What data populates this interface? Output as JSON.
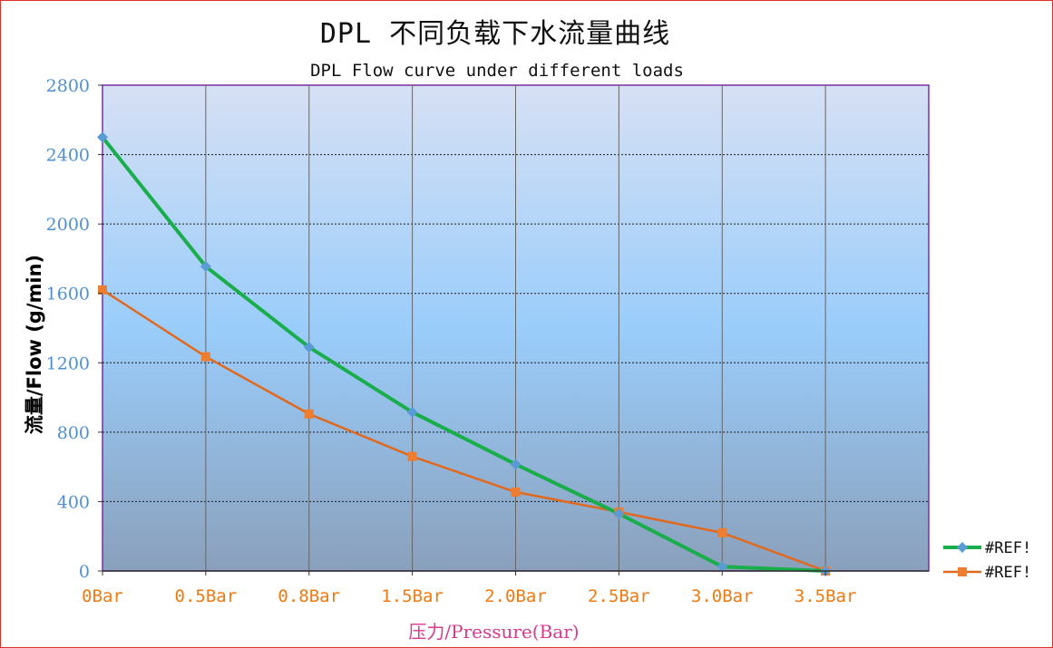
{
  "title": "DPL  不同负载下水流量曲线",
  "chart_data": {
    "type": "line",
    "title": "DPL  Flow curve under different loads",
    "xlabel": "压力/Pressure(Bar)",
    "ylabel": "流量/Flow (g/min)",
    "categories": [
      "0Bar",
      "0.5Bar",
      "0.8Bar",
      "1.5Bar",
      "2.0Bar",
      "2.5Bar",
      "3.0Bar",
      "3.5Bar"
    ],
    "ylim": [
      0,
      2800
    ],
    "yticks": [
      0,
      400,
      800,
      1200,
      1600,
      2000,
      2400,
      2800
    ],
    "grid": true,
    "legend_position": "right",
    "series": [
      {
        "name": "#REF!",
        "color": "#1aad4b",
        "marker": "diamond",
        "marker_color": "#5b9bd5",
        "values": [
          2500,
          1755,
          1290,
          915,
          615,
          330,
          25,
          0
        ]
      },
      {
        "name": "#REF!",
        "color": "#e0691e",
        "marker": "square",
        "marker_color": "#ed7d31",
        "values": [
          1620,
          1235,
          905,
          660,
          455,
          340,
          220,
          0
        ]
      }
    ],
    "plot_bg_gradient": [
      "#d6e0f4",
      "#9acdfb",
      "#8aa0bc"
    ]
  }
}
